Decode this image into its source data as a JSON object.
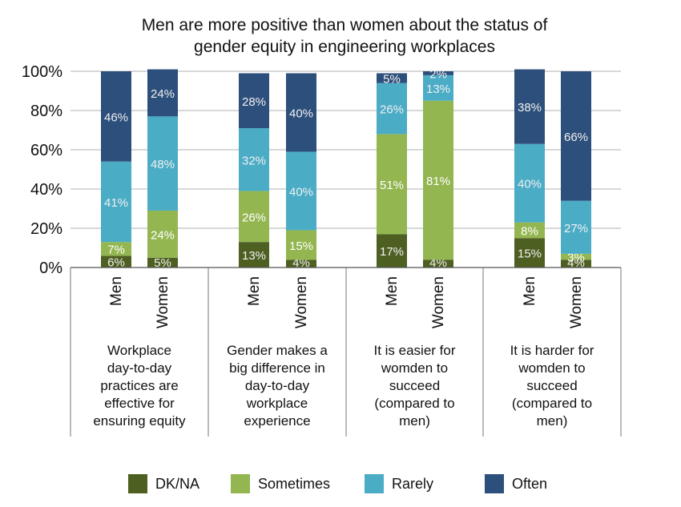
{
  "chart_data": {
    "type": "bar",
    "stacked": true,
    "title": "Men are more positive than women about the status of gender equity in engineering workplaces",
    "title_lines": [
      "Men are more positive than women about the status of",
      "gender equity in engineering workplaces"
    ],
    "ylim": [
      0,
      100
    ],
    "yticks": [
      "0%",
      "20%",
      "40%",
      "60%",
      "80%",
      "100%"
    ],
    "grid": true,
    "legend_position": "bottom",
    "groups": [
      {
        "label_lines": [
          "Workplace",
          "day-to-day",
          "practices are",
          "effective for",
          "ensuring equity"
        ],
        "bars": [
          "Men",
          "Women"
        ]
      },
      {
        "label_lines": [
          "Gender makes a",
          "big difference in",
          "day-to-day",
          "workplace",
          "experience"
        ],
        "bars": [
          "Men",
          "Women"
        ]
      },
      {
        "label_lines": [
          "It is easier for",
          "womden to",
          "succeed",
          "(compared to",
          "men)"
        ],
        "bars": [
          "Men",
          "Women"
        ]
      },
      {
        "label_lines": [
          "It is harder for",
          "womden to",
          "succeed",
          "(compared to",
          "men)"
        ],
        "bars": [
          "Men",
          "Women"
        ]
      }
    ],
    "categories": [
      "Workplace day-to-day practices are effective for ensuring equity - Men",
      "Workplace day-to-day practices are effective for ensuring equity - Women",
      "Gender makes a big difference in day-to-day workplace experience - Men",
      "Gender makes a big difference in day-to-day workplace experience - Women",
      "It is easier for womden to succeed (compared to men) - Men",
      "It is easier for womden to succeed (compared to men) - Women",
      "It is harder for womden to succeed (compared to men) - Men",
      "It is harder for womden to succeed (compared to men) - Women"
    ],
    "series": [
      {
        "name": "DK/NA",
        "color": "#4e5f22",
        "values": [
          6,
          5,
          13,
          4,
          17,
          4,
          15,
          4
        ]
      },
      {
        "name": "Sometimes",
        "color": "#93b651",
        "values": [
          7,
          24,
          26,
          15,
          51,
          81,
          8,
          3
        ]
      },
      {
        "name": "Rarely",
        "color": "#4bacc6",
        "values": [
          41,
          48,
          32,
          40,
          26,
          13,
          40,
          27
        ]
      },
      {
        "name": "Often",
        "color": "#2d4f7b",
        "values": [
          46,
          24,
          28,
          40,
          5,
          2,
          38,
          66
        ]
      }
    ],
    "data_labels": [
      [
        "6%",
        "5%",
        "13%",
        "4%",
        "17%",
        "4%",
        "15%",
        "4%"
      ],
      [
        "7%",
        "24%",
        "26%",
        "15%",
        "51%",
        "81%",
        "8%",
        "3%"
      ],
      [
        "41%",
        "48%",
        "32%",
        "40%",
        "26%",
        "13%",
        "40%",
        "27%"
      ],
      [
        "46%",
        "24%",
        "28%",
        "40%",
        "5%",
        "2%",
        "38%",
        "66%"
      ]
    ]
  }
}
